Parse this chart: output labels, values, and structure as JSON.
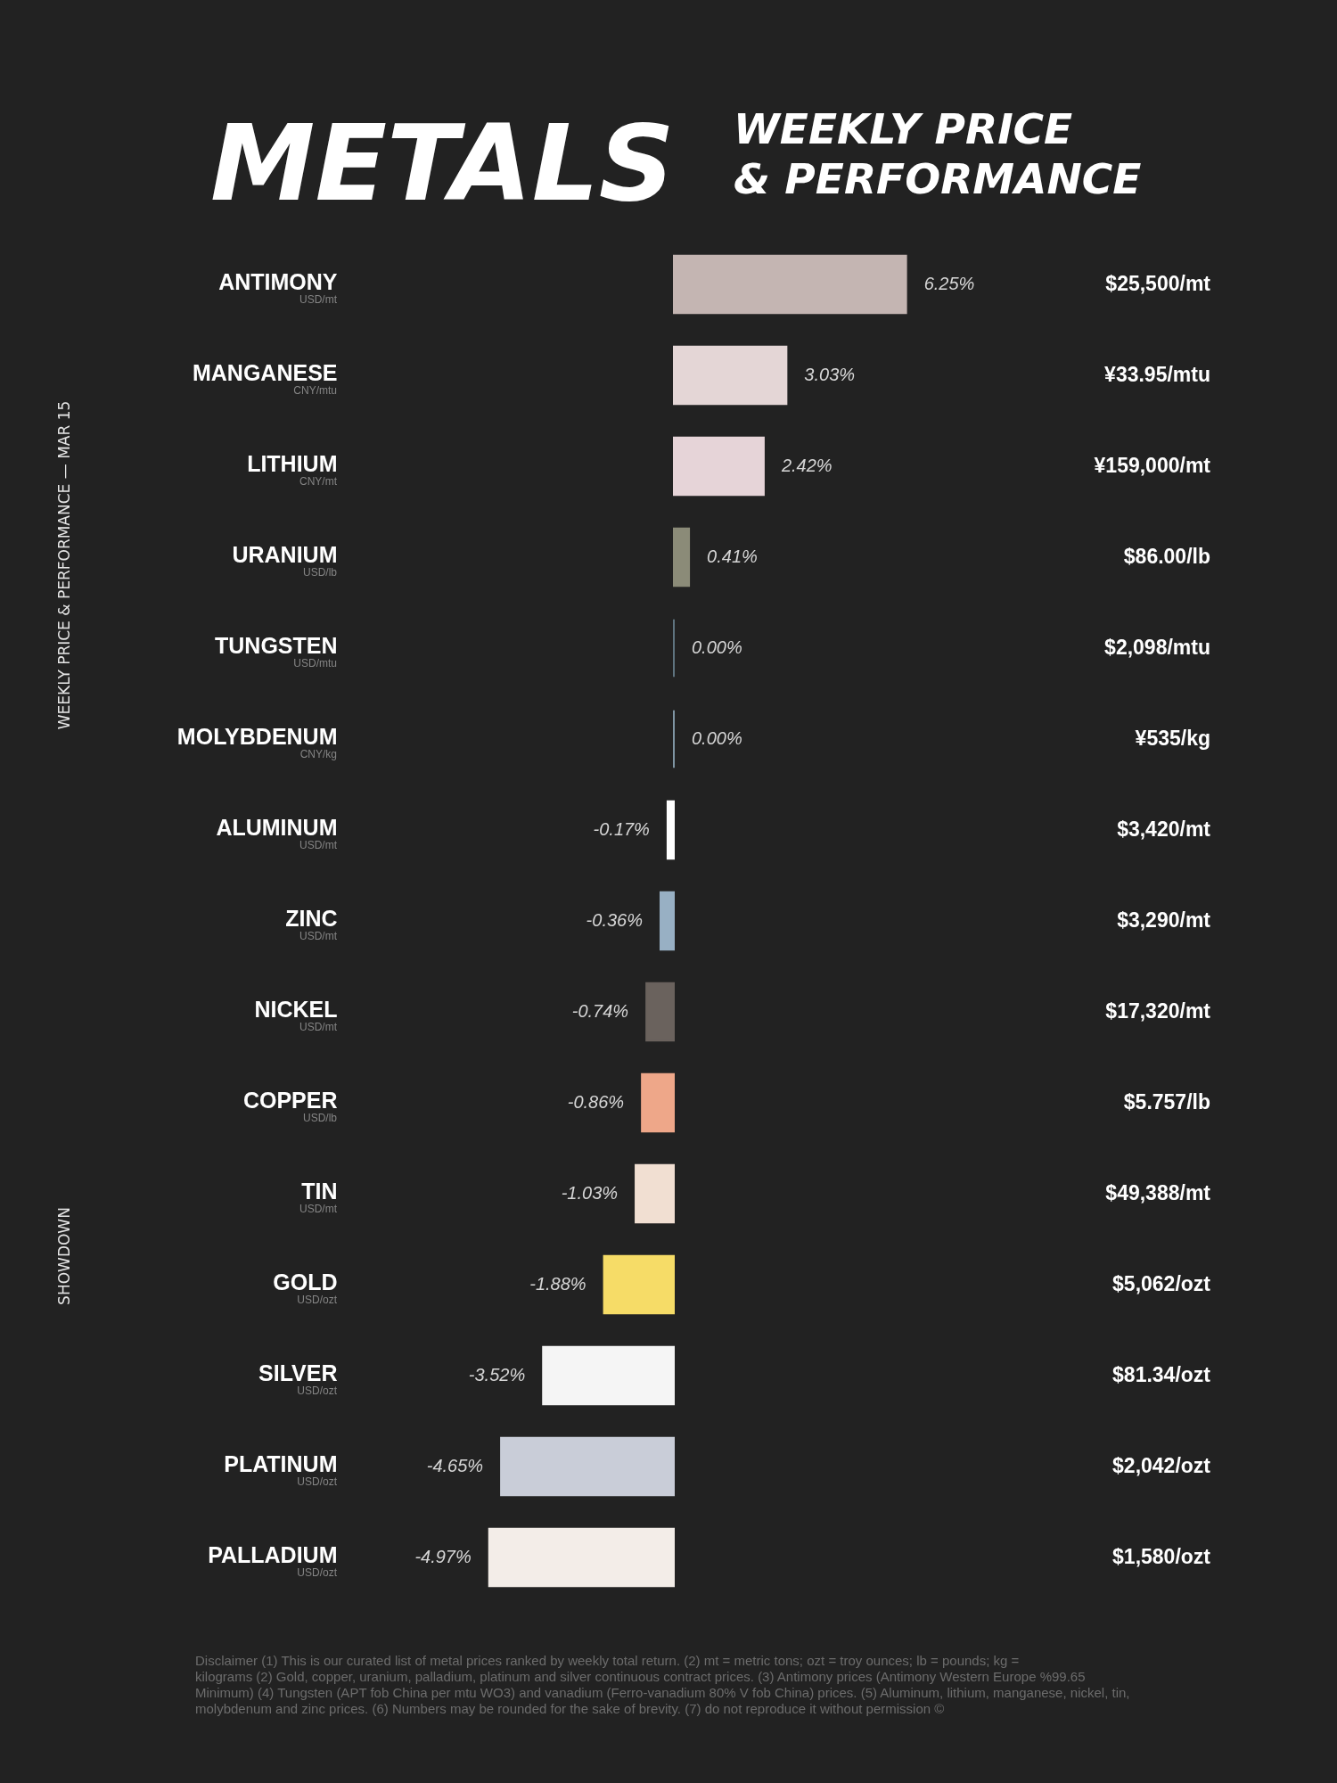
{
  "chart_data": {
    "type": "bar",
    "orientation": "horizontal",
    "title": "METALS",
    "subtitle": "WEEKLY PRICE\n& PERFORMANCE",
    "categories": [
      "ANTIMONY",
      "MANGANESE",
      "LITHIUM",
      "URANIUM",
      "TUNGSTEN",
      "MOLYBDENUM",
      "ALUMINUM",
      "ZINC",
      "NICKEL",
      "COPPER",
      "TIN",
      "GOLD",
      "SILVER",
      "PLATINUM",
      "PALLADIUM"
    ],
    "values": [
      6.25,
      3.03,
      2.42,
      0.41,
      0.0,
      0.0,
      -0.17,
      -0.36,
      -0.74,
      -0.86,
      -1.03,
      -1.88,
      -3.52,
      -4.65,
      -4.97
    ],
    "colors": [
      "#c4b5b2",
      "#e4d6d6",
      "#e6d4d8",
      "#8b8b78",
      "#5f7480",
      "#7f95a3",
      "#ffffff",
      "#98b0c4",
      "#6a625d",
      "#eea789",
      "#f1dfd2",
      "#f6dc67",
      "#f5f5f5",
      "#c9cdd8",
      "#f3ede8"
    ],
    "value_labels": [
      "6.25%",
      "3.03%",
      "2.42%",
      "0.41%",
      "0.00%",
      "0.00%",
      "-0.17%",
      "-0.36%",
      "-0.74%",
      "-0.86%",
      "-1.03%",
      "-1.88%",
      "-3.52%",
      "-4.65%",
      "-4.97%"
    ],
    "annotations": [
      "USD/mt",
      "CNY/mtu",
      "CNY/mt",
      "USD/lb",
      "USD/mtu",
      "CNY/kg",
      "USD/mt",
      "USD/mt",
      "USD/mt",
      "USD/lb",
      "USD/mt",
      "USD/ozt",
      "USD/ozt",
      "USD/ozt",
      "USD/ozt",
      "$25,500/mt",
      "¥33.95/mtu",
      "¥159,000/mt",
      "$86.00/lb",
      "$2,098/mtu",
      "¥535/kg",
      "$3,420/mt",
      "$3,290/mt",
      "$17,320/mt",
      "$5.757/lb",
      "$49,388/mt",
      "$5,062/ozt",
      "$81.34/ozt",
      "$2,042/ozt",
      "$1,580/ozt",
      "WEEKLY PRICE & PERFORMANCE — MAR 15",
      "SHOWDOWN",
      "Disclaimer (1) This is our curated list of metal prices ranked by weekly total return. (2) mt = metric tons; ozt = troy ounces; lb = pounds; kg = kilograms (2) Gold, copper, uranium, palladium, platinum and silver continuous contract prices. (3) Antimony prices (Antimony Western Europe %99.65 Minimum) (4) Tungsten (APT fob China per mtu WO3) and vanadium (Ferro-vanadium 80% V fob China) prices. (5) Aluminum, lithium, manganese, nickel, tin, molybdenum and zinc prices. (6) Numbers may be rounded for the sake of brevity. (7) do not reproduce it without permission ©"
    ]
  }
}
